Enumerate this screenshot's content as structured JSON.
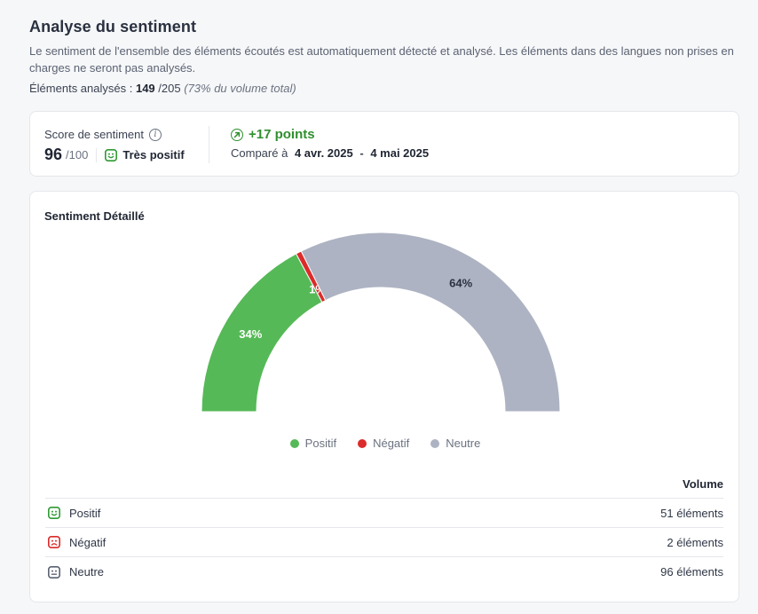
{
  "header": {
    "title": "Analyse du sentiment",
    "description": "Le sentiment de l'ensemble des éléments écoutés est automatiquement détecté et analysé. Les éléments dans des langues non prises en charges ne seront pas analysés.",
    "analysed_label": "Éléments analysés :",
    "analysed_count": "149",
    "analysed_total": "/205",
    "analysed_note": "(73% du volume total)"
  },
  "score": {
    "label": "Score de sentiment",
    "info_icon": "info-icon",
    "value": "96",
    "max": "/100",
    "status_icon": "smile-icon",
    "status": "Très positif",
    "delta": "+17 points",
    "delta_icon": "arrow-up-right-circle-icon",
    "compare_label": "Comparé à",
    "compare_start": "4 avr. 2025",
    "compare_sep": "-",
    "compare_end": "4 mai 2025"
  },
  "detail": {
    "title": "Sentiment Détaillé"
  },
  "chart_data": {
    "type": "pie",
    "subtype": "half-donut",
    "categories": [
      "Positif",
      "Négatif",
      "Neutre"
    ],
    "values": [
      34,
      1,
      64
    ],
    "labels": [
      "34%",
      "1%",
      "64%"
    ],
    "colors": [
      "#56b957",
      "#dc2b2b",
      "#adb3c2"
    ],
    "legend_position": "bottom"
  },
  "volume": {
    "header": "Volume",
    "rows": [
      {
        "label": "Positif",
        "value": "51 éléments",
        "icon": "smile-icon",
        "color": "#2f9a34"
      },
      {
        "label": "Négatif",
        "value": "2 éléments",
        "icon": "frown-icon",
        "color": "#dc2b2b"
      },
      {
        "label": "Neutre",
        "value": "96 éléments",
        "icon": "neutral-face-icon",
        "color": "#5b6272"
      }
    ]
  }
}
